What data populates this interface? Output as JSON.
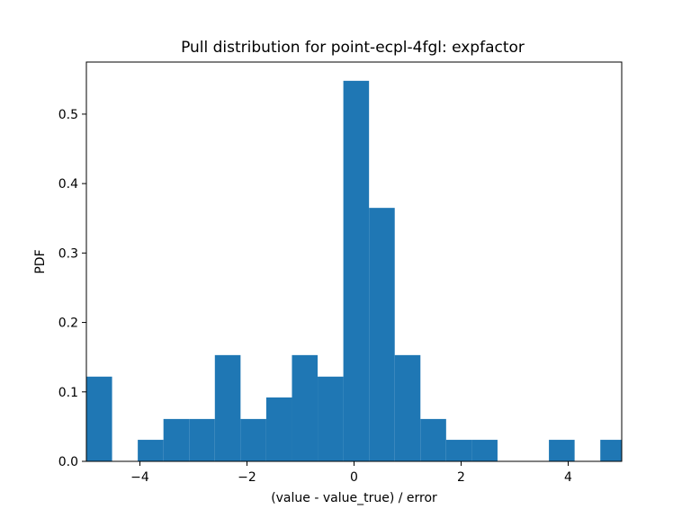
{
  "chart_data": {
    "type": "bar",
    "title": "Pull distribution for point-ecpl-4fgl: expfactor",
    "xlabel": "(value - value_true) / error",
    "ylabel": "PDF",
    "xlim": [
      -5,
      5
    ],
    "ylim": [
      0,
      0.575
    ],
    "xticks": [
      -4,
      -2,
      0,
      2,
      4
    ],
    "xtick_labels": [
      "−4",
      "−2",
      "0",
      "2",
      "4"
    ],
    "yticks": [
      0.0,
      0.1,
      0.2,
      0.3,
      0.4,
      0.5
    ],
    "ytick_labels": [
      "0.0",
      "0.1",
      "0.2",
      "0.3",
      "0.4",
      "0.5"
    ],
    "grid": false,
    "legend": false,
    "bar_color": "#1f77b4",
    "bins": [
      {
        "x0": -5.0,
        "x1": -4.52,
        "value": 0.122
      },
      {
        "x0": -4.52,
        "x1": -4.04,
        "value": 0.0
      },
      {
        "x0": -4.04,
        "x1": -3.56,
        "value": 0.031
      },
      {
        "x0": -3.56,
        "x1": -3.08,
        "value": 0.061
      },
      {
        "x0": -3.08,
        "x1": -2.6,
        "value": 0.061
      },
      {
        "x0": -2.6,
        "x1": -2.12,
        "value": 0.153
      },
      {
        "x0": -2.12,
        "x1": -1.64,
        "value": 0.061
      },
      {
        "x0": -1.64,
        "x1": -1.16,
        "value": 0.092
      },
      {
        "x0": -1.16,
        "x1": -0.68,
        "value": 0.153
      },
      {
        "x0": -0.68,
        "x1": -0.2,
        "value": 0.122
      },
      {
        "x0": -0.2,
        "x1": 0.28,
        "value": 0.548
      },
      {
        "x0": 0.28,
        "x1": 0.76,
        "value": 0.365
      },
      {
        "x0": 0.76,
        "x1": 1.24,
        "value": 0.153
      },
      {
        "x0": 1.24,
        "x1": 1.72,
        "value": 0.061
      },
      {
        "x0": 1.72,
        "x1": 2.2,
        "value": 0.031
      },
      {
        "x0": 2.2,
        "x1": 2.68,
        "value": 0.031
      },
      {
        "x0": 2.68,
        "x1": 3.16,
        "value": 0.0
      },
      {
        "x0": 3.16,
        "x1": 3.64,
        "value": 0.0
      },
      {
        "x0": 3.64,
        "x1": 4.12,
        "value": 0.031
      },
      {
        "x0": 4.12,
        "x1": 4.6,
        "value": 0.0
      },
      {
        "x0": 4.6,
        "x1": 5.08,
        "value": 0.031
      }
    ]
  }
}
